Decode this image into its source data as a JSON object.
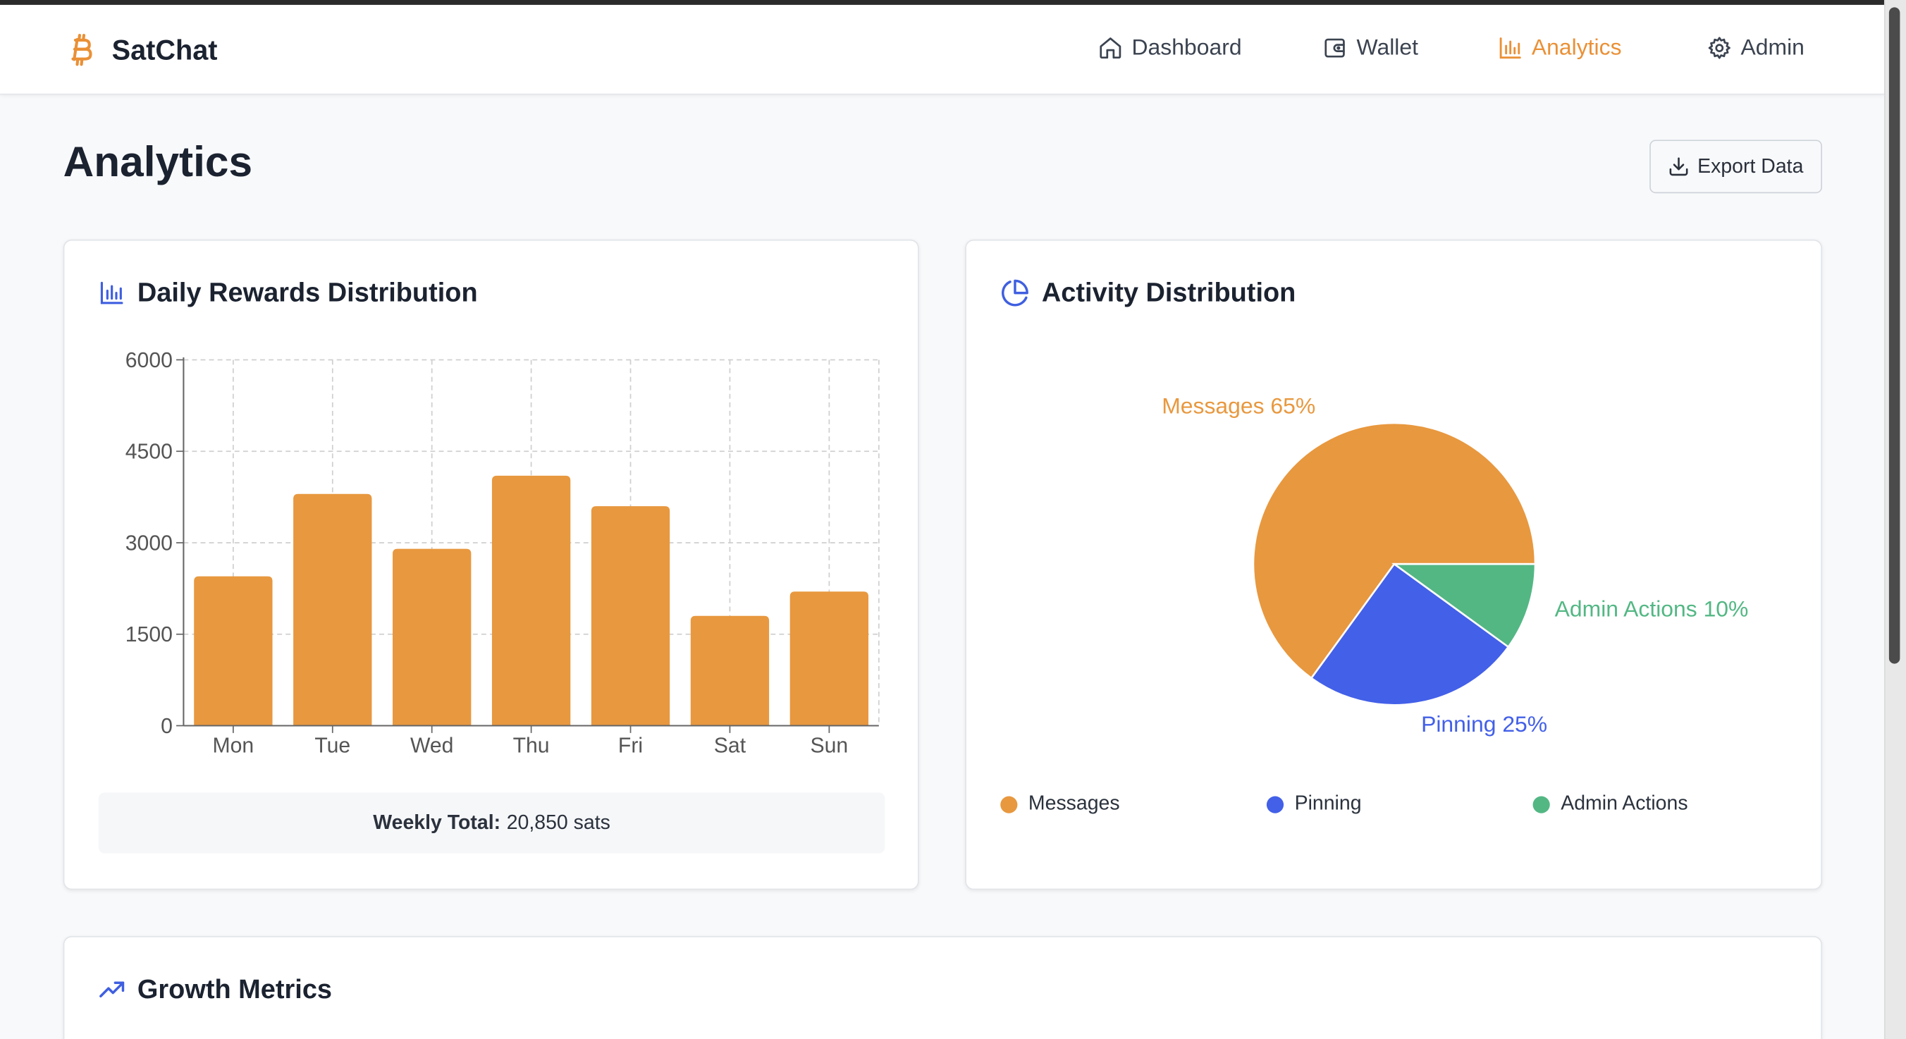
{
  "app": {
    "name": "SatChat",
    "nav": [
      {
        "label": "Dashboard",
        "icon": "home-icon",
        "active": false
      },
      {
        "label": "Wallet",
        "icon": "wallet-icon",
        "active": false
      },
      {
        "label": "Analytics",
        "icon": "bar-chart-icon",
        "active": true
      },
      {
        "label": "Admin",
        "icon": "gear-icon",
        "active": false
      }
    ]
  },
  "page": {
    "title": "Analytics",
    "export_label": "Export Data"
  },
  "rewards_card": {
    "title": "Daily Rewards Distribution",
    "weekly_total_label": "Weekly Total:",
    "weekly_total_value": "20,850 sats"
  },
  "activity_card": {
    "title": "Activity Distribution",
    "legend": [
      "Messages",
      "Pinning",
      "Admin Actions"
    ]
  },
  "growth_card": {
    "title": "Growth Metrics"
  },
  "colors": {
    "accent": "#ea9036",
    "bar": "#e8983f",
    "messages": "#e8983f",
    "pinning": "#4360e8",
    "admin_actions": "#53b784",
    "icon_blue": "#3f5fe0"
  },
  "chart_data": [
    {
      "type": "bar",
      "title": "Daily Rewards Distribution",
      "categories": [
        "Mon",
        "Tue",
        "Wed",
        "Thu",
        "Fri",
        "Sat",
        "Sun"
      ],
      "values": [
        2450,
        3800,
        2900,
        4100,
        3600,
        1800,
        2200
      ],
      "ylim": [
        0,
        6000
      ],
      "yticks": [
        0,
        1500,
        3000,
        4500,
        6000
      ],
      "xlabel": "",
      "ylabel": "",
      "grid": true
    },
    {
      "type": "pie",
      "title": "Activity Distribution",
      "labels": [
        "Messages",
        "Pinning",
        "Admin Actions"
      ],
      "values": [
        65,
        25,
        10
      ],
      "slice_labels": [
        "Messages 65%",
        "Pinning 25%",
        "Admin Actions 10%"
      ],
      "legend_position": "bottom"
    }
  ]
}
